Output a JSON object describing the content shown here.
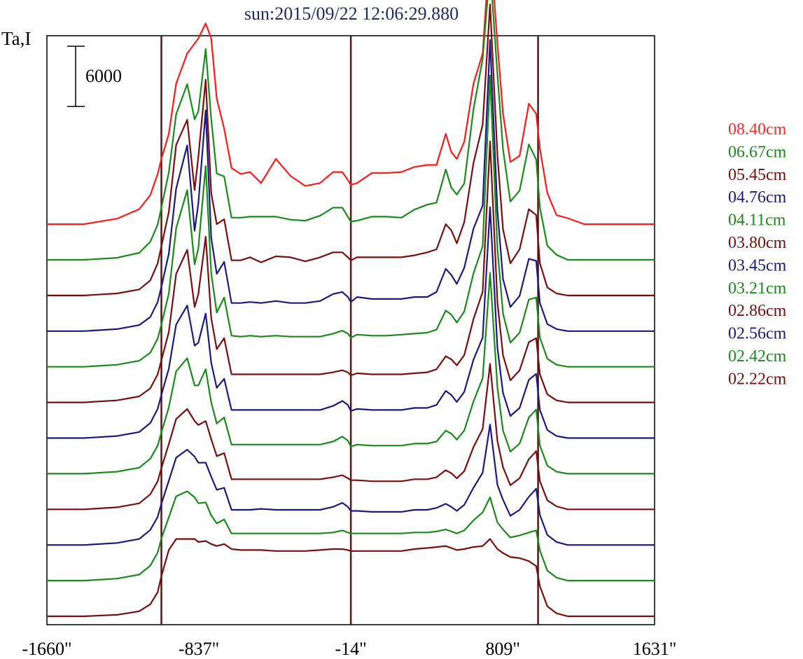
{
  "chart_data": {
    "type": "line",
    "title": "sun:2015/09/22 12:06:29.880",
    "ylabel": "Ta,I",
    "scale_bar": {
      "label": "6000",
      "value": 6000
    },
    "x_ticks": [
      "-1660\"",
      "-837\"",
      "-14\"",
      "809\"",
      "1631\""
    ],
    "x_tick_values": [
      -1660,
      -837,
      -14,
      809,
      1631
    ],
    "xlim": [
      -1660,
      1631
    ],
    "vertical_markers": [
      -1040,
      -14,
      1000
    ],
    "x": [
      -1660,
      -1460,
      -1280,
      -1160,
      -1100,
      -1060,
      -1040,
      -1000,
      -960,
      -900,
      -860,
      -840,
      -800,
      -770,
      -740,
      -700,
      -660,
      -610,
      -560,
      -500,
      -420,
      -340,
      -260,
      -180,
      -110,
      -60,
      -30,
      -14,
      20,
      100,
      180,
      260,
      330,
      400,
      450,
      500,
      530,
      560,
      600,
      650,
      700,
      740,
      780,
      810,
      850,
      900,
      950,
      990,
      1010,
      1050,
      1100,
      1160,
      1250,
      1400,
      1631
    ],
    "series": [
      {
        "name": "08.40cm",
        "color": "#ff1a1a",
        "offset_units": 11,
        "values": [
          0,
          0,
          550,
          1500,
          2900,
          5000,
          6500,
          9000,
          14000,
          17000,
          18000,
          18500,
          20000,
          18500,
          12500,
          9500,
          5600,
          5000,
          5200,
          4100,
          6500,
          4800,
          3800,
          4100,
          5200,
          5200,
          4400,
          3900,
          4100,
          5100,
          5100,
          5200,
          5700,
          5900,
          5900,
          9000,
          7200,
          6500,
          8200,
          14000,
          17000,
          28000,
          18000,
          11000,
          6200,
          6800,
          12000,
          11000,
          7500,
          3100,
          900,
          600,
          0,
          0,
          0
        ]
      },
      {
        "name": "06.67cm",
        "color": "#1a8a1a",
        "offset_units": 10,
        "values": [
          0,
          0,
          200,
          700,
          1800,
          3500,
          5200,
          8700,
          14500,
          17500,
          14000,
          14800,
          21000,
          14000,
          8600,
          8300,
          4200,
          4200,
          4300,
          4300,
          4300,
          4000,
          3900,
          4400,
          5200,
          5200,
          4300,
          3800,
          3900,
          4300,
          4300,
          4200,
          5000,
          5500,
          5700,
          9000,
          7200,
          6500,
          7600,
          15000,
          20000,
          29000,
          18500,
          11000,
          5800,
          6900,
          11500,
          10000,
          5200,
          1400,
          500,
          0,
          0,
          0,
          0
        ]
      },
      {
        "name": "05.45cm",
        "color": "#7a0e0e",
        "offset_units": 9,
        "values": [
          0,
          0,
          200,
          600,
          1500,
          3200,
          4900,
          8300,
          15000,
          17500,
          10500,
          13800,
          21500,
          10200,
          7100,
          7600,
          3500,
          3500,
          3800,
          3300,
          3900,
          3800,
          3400,
          3800,
          4300,
          4300,
          3800,
          3500,
          3800,
          3800,
          3800,
          3800,
          4000,
          4300,
          4600,
          7100,
          6500,
          5200,
          7300,
          13200,
          17000,
          29000,
          14000,
          6600,
          3200,
          4600,
          8600,
          8000,
          3200,
          800,
          200,
          0,
          0,
          0,
          0
        ]
      },
      {
        "name": "04.76cm",
        "color": "#1a1a80",
        "offset_units": 8,
        "values": [
          0,
          0,
          200,
          600,
          1400,
          2900,
          4400,
          7700,
          14200,
          18500,
          10000,
          12700,
          22000,
          9300,
          5700,
          6900,
          2800,
          2800,
          2900,
          2800,
          3000,
          2800,
          2800,
          3000,
          3700,
          3900,
          3400,
          2900,
          3400,
          3200,
          3200,
          3200,
          3400,
          3400,
          3900,
          6200,
          5600,
          4700,
          6300,
          10200,
          12500,
          29000,
          12000,
          5200,
          2400,
          3500,
          7200,
          7000,
          2800,
          700,
          200,
          0,
          0,
          0,
          0
        ]
      },
      {
        "name": "04.11cm",
        "color": "#1a8a1a",
        "offset_units": 7,
        "values": [
          0,
          0,
          200,
          600,
          1400,
          2800,
          4200,
          7300,
          13800,
          17600,
          10200,
          11800,
          20000,
          9300,
          5400,
          6900,
          3100,
          3000,
          3100,
          3000,
          3100,
          3000,
          3000,
          3000,
          3300,
          3600,
          3300,
          2900,
          3200,
          3100,
          3100,
          3200,
          3300,
          3400,
          3700,
          5600,
          5200,
          4400,
          5500,
          9300,
          12000,
          29000,
          11800,
          5300,
          2400,
          3400,
          6700,
          6900,
          2900,
          800,
          200,
          0,
          0,
          0,
          0
        ]
      },
      {
        "name": "03.80cm",
        "color": "#7a0e0e",
        "offset_units": 6,
        "values": [
          0,
          0,
          200,
          600,
          1400,
          2800,
          4200,
          7000,
          12800,
          15200,
          9500,
          10800,
          16500,
          8400,
          5300,
          6400,
          2800,
          2800,
          2800,
          2800,
          2800,
          2800,
          2800,
          2800,
          3000,
          3200,
          3000,
          2700,
          2900,
          2800,
          2800,
          2800,
          2900,
          3000,
          3300,
          4600,
          4300,
          3700,
          4700,
          8300,
          11000,
          26000,
          10000,
          4700,
          2200,
          3200,
          6000,
          6400,
          2800,
          800,
          200,
          0,
          0,
          0,
          0
        ]
      },
      {
        "name": "03.45cm",
        "color": "#1a1a80",
        "offset_units": 5,
        "values": [
          0,
          0,
          200,
          600,
          1500,
          2900,
          4300,
          6900,
          11300,
          13200,
          9200,
          9500,
          12400,
          7500,
          5000,
          5900,
          2800,
          2800,
          2800,
          2800,
          2800,
          2800,
          2800,
          2800,
          3200,
          3700,
          3300,
          2700,
          2900,
          2800,
          2800,
          2800,
          3000,
          3000,
          3300,
          4700,
          4300,
          3600,
          4600,
          7800,
          10000,
          23000,
          9000,
          4500,
          2200,
          3000,
          5800,
          6400,
          2800,
          800,
          200,
          0,
          0,
          0,
          0
        ]
      },
      {
        "name": "03.21cm",
        "color": "#1a8a1a",
        "offset_units": 4,
        "values": [
          0,
          0,
          200,
          600,
          1500,
          2800,
          4100,
          6600,
          10200,
          11500,
          8800,
          8800,
          10400,
          7100,
          5000,
          5600,
          2900,
          2900,
          2900,
          2900,
          2900,
          2900,
          2900,
          2900,
          3200,
          3700,
          3300,
          2700,
          2900,
          2800,
          2800,
          2800,
          3000,
          3000,
          3200,
          4300,
          4000,
          3400,
          4300,
          7200,
          9500,
          20000,
          8600,
          4300,
          2200,
          3000,
          5600,
          6400,
          2800,
          800,
          200,
          0,
          0,
          0,
          0
        ]
      },
      {
        "name": "02.86cm",
        "color": "#7a0e0e",
        "offset_units": 3,
        "values": [
          0,
          0,
          200,
          600,
          1500,
          2800,
          4100,
          6500,
          9000,
          10000,
          8800,
          8400,
          8800,
          7000,
          5300,
          5600,
          3000,
          3000,
          3000,
          3000,
          3000,
          3000,
          3000,
          3000,
          3200,
          3400,
          3100,
          2900,
          2900,
          2800,
          2800,
          2800,
          3000,
          3000,
          3200,
          3900,
          3600,
          3100,
          3800,
          6200,
          8000,
          14500,
          6800,
          4200,
          2400,
          3100,
          5000,
          5800,
          2800,
          900,
          300,
          0,
          0,
          0,
          0
        ]
      },
      {
        "name": "02.56cm",
        "color": "#1a1a80",
        "offset_units": 2,
        "values": [
          0,
          0,
          200,
          600,
          1500,
          2800,
          4100,
          6400,
          8700,
          9500,
          8800,
          8200,
          8200,
          6800,
          5500,
          5700,
          3500,
          3500,
          3500,
          3600,
          3500,
          3500,
          3500,
          3500,
          3800,
          4200,
          3800,
          3400,
          3400,
          3300,
          3300,
          3300,
          3500,
          3500,
          3700,
          4100,
          3800,
          3400,
          4000,
          5700,
          7200,
          12000,
          6000,
          4500,
          2900,
          3500,
          4800,
          5600,
          3000,
          1000,
          300,
          0,
          0,
          0,
          0
        ]
      },
      {
        "name": "02.42cm",
        "color": "#1a8a1a",
        "offset_units": 1,
        "values": [
          0,
          0,
          200,
          600,
          1500,
          2800,
          4200,
          6300,
          8400,
          8900,
          8300,
          7700,
          7800,
          6500,
          5700,
          6100,
          4700,
          4700,
          4700,
          4700,
          4700,
          4700,
          4700,
          4700,
          4800,
          5000,
          4800,
          4700,
          4700,
          4700,
          4700,
          4700,
          4800,
          4800,
          4900,
          5100,
          4900,
          4700,
          5000,
          6000,
          6800,
          8300,
          5800,
          5100,
          4300,
          4500,
          4800,
          5000,
          3000,
          1000,
          300,
          0,
          0,
          0,
          0
        ]
      },
      {
        "name": "02.22cm",
        "color": "#7a0e0e",
        "offset_units": 0,
        "values": [
          0,
          0,
          150,
          500,
          1200,
          2400,
          4000,
          6600,
          7700,
          7700,
          7700,
          7400,
          7500,
          7200,
          7000,
          7200,
          6700,
          6600,
          6600,
          6600,
          6500,
          6500,
          6500,
          6600,
          6700,
          6700,
          6600,
          6500,
          6500,
          6500,
          6500,
          6500,
          6700,
          6800,
          6900,
          7000,
          6800,
          6600,
          6700,
          6900,
          7000,
          7700,
          6700,
          6300,
          5900,
          5800,
          5500,
          5000,
          3000,
          1000,
          300,
          0,
          0,
          0,
          0
        ]
      }
    ],
    "legend_position": "right",
    "grid": false
  }
}
